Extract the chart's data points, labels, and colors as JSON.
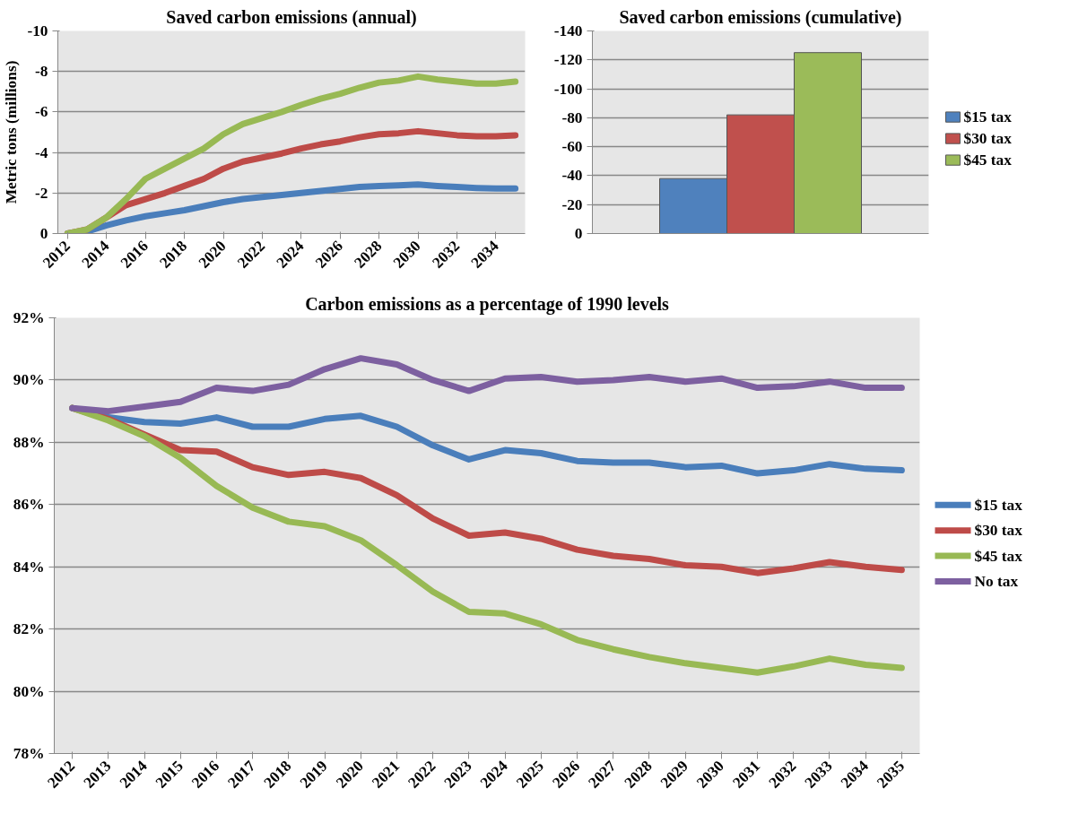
{
  "chart_data": [
    {
      "type": "line",
      "title": "Saved carbon emissions (annual)",
      "ylabel": "Metric tons (millions)",
      "x": [
        2012,
        2013,
        2014,
        2015,
        2016,
        2017,
        2018,
        2019,
        2020,
        2021,
        2022,
        2023,
        2024,
        2025,
        2026,
        2027,
        2028,
        2029,
        2030,
        2031,
        2032,
        2033,
        2034,
        2035
      ],
      "xlim": [
        2011.5,
        2035.5
      ],
      "xticks": [
        2012,
        2014,
        2016,
        2018,
        2020,
        2022,
        2024,
        2026,
        2028,
        2030,
        2032,
        2034
      ],
      "ylim": [
        0,
        -10
      ],
      "yticks": [
        0,
        -2,
        -4,
        -6,
        -8,
        -10
      ],
      "grid": "y",
      "series": [
        {
          "color": "#4a7ebb",
          "values": [
            0,
            -0.1,
            -0.4,
            -0.65,
            -0.85,
            -1.0,
            -1.15,
            -1.35,
            -1.55,
            -1.7,
            -1.8,
            -1.9,
            -2.0,
            -2.1,
            -2.2,
            -2.3,
            -2.35,
            -2.38,
            -2.42,
            -2.35,
            -2.3,
            -2.25,
            -2.22,
            -2.22
          ]
        },
        {
          "color": "#be4b48",
          "values": [
            0,
            -0.2,
            -0.8,
            -1.4,
            -1.7,
            -2.0,
            -2.35,
            -2.7,
            -3.2,
            -3.55,
            -3.75,
            -3.95,
            -4.2,
            -4.4,
            -4.55,
            -4.75,
            -4.9,
            -4.95,
            -5.05,
            -4.95,
            -4.85,
            -4.8,
            -4.8,
            -4.85
          ]
        },
        {
          "color": "#98b954",
          "values": [
            0,
            -0.2,
            -0.8,
            -1.7,
            -2.7,
            -3.2,
            -3.7,
            -4.2,
            -4.9,
            -5.4,
            -5.7,
            -6.0,
            -6.35,
            -6.65,
            -6.9,
            -7.2,
            -7.45,
            -7.55,
            -7.75,
            -7.6,
            -7.5,
            -7.4,
            -7.4,
            -7.5
          ]
        }
      ]
    },
    {
      "type": "bar",
      "title": "Saved carbon emissions (cumulative)",
      "categories": [
        null
      ],
      "ylim": [
        0,
        -140
      ],
      "yticks": [
        0,
        -20,
        -40,
        -60,
        -80,
        -100,
        -120,
        -140
      ],
      "grid": "y",
      "legend": "right",
      "tick_labels": "y",
      "series": [
        {
          "name": "$15 tax",
          "color": "#4f81bd",
          "values": [
            -38
          ]
        },
        {
          "name": "$30 tax",
          "color": "#c0504d",
          "values": [
            -82
          ]
        },
        {
          "name": "$45 tax",
          "color": "#9bbb59",
          "values": [
            -125
          ]
        }
      ]
    },
    {
      "type": "line",
      "title": "Carbon emissions as a percentage of 1990 levels",
      "categories": [
        "2012",
        "2013",
        "2014",
        "2015",
        "2016",
        "2017",
        "2018",
        "2019",
        "2020",
        "2021",
        "2022",
        "2023",
        "2024",
        "2025",
        "2026",
        "2027",
        "2028",
        "2029",
        "2030",
        "2031",
        "2032",
        "2033",
        "2034",
        "2035"
      ],
      "ylim": [
        78,
        92
      ],
      "yticks": [
        {
          "value": 78,
          "label": "78%"
        },
        {
          "value": 80,
          "label": "80%"
        },
        {
          "value": 82,
          "label": "82%"
        },
        {
          "value": 84,
          "label": "84%"
        },
        {
          "value": 86,
          "label": "86%"
        },
        {
          "value": 88,
          "label": "88%"
        },
        {
          "value": 90,
          "label": "90%"
        },
        {
          "value": 92,
          "label": "92%"
        }
      ],
      "grid": "y",
      "legend": "right",
      "series": [
        {
          "name": "$15 tax",
          "color": "#4a7ebb",
          "values": [
            89.1,
            88.8,
            88.65,
            88.6,
            88.8,
            88.5,
            88.5,
            88.75,
            88.85,
            88.5,
            87.9,
            87.45,
            87.75,
            87.65,
            87.4,
            87.35,
            87.35,
            87.2,
            87.25,
            87.0,
            87.1,
            87.3,
            87.15,
            87.1
          ]
        },
        {
          "name": "$30 tax",
          "color": "#be4b48",
          "values": [
            89.1,
            88.75,
            88.25,
            87.75,
            87.7,
            87.2,
            86.95,
            87.05,
            86.85,
            86.3,
            85.55,
            85.0,
            85.1,
            84.9,
            84.55,
            84.35,
            84.25,
            84.05,
            84.0,
            83.8,
            83.95,
            84.15,
            84.0,
            83.9
          ]
        },
        {
          "name": "$45 tax",
          "color": "#98b954",
          "values": [
            89.1,
            88.7,
            88.2,
            87.5,
            86.6,
            85.9,
            85.45,
            85.3,
            84.85,
            84.05,
            83.2,
            82.55,
            82.5,
            82.15,
            81.65,
            81.35,
            81.1,
            80.9,
            80.75,
            80.6,
            80.8,
            81.05,
            80.85,
            80.75
          ]
        },
        {
          "name": "No tax",
          "color": "#7d60a0",
          "values": [
            89.1,
            89.0,
            89.15,
            89.3,
            89.75,
            89.65,
            89.85,
            90.35,
            90.7,
            90.5,
            90.0,
            89.65,
            90.05,
            90.1,
            89.95,
            90.0,
            90.1,
            89.95,
            90.05,
            89.75,
            89.8,
            89.95,
            89.75,
            89.75
          ]
        }
      ]
    }
  ]
}
